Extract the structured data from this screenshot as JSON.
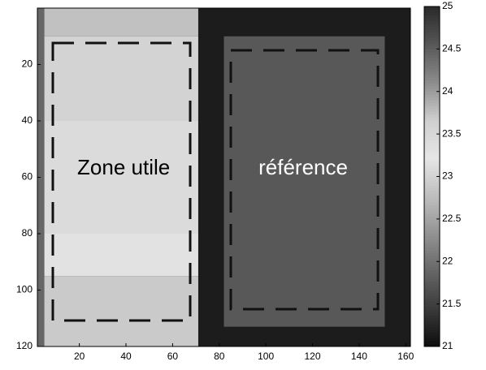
{
  "chart_data": {
    "type": "heatmap",
    "xlim": [
      2,
      162
    ],
    "ylim": [
      0,
      120
    ],
    "xticks": [
      20,
      40,
      60,
      80,
      100,
      120,
      140,
      160
    ],
    "yticks": [
      20,
      40,
      60,
      80,
      100,
      120
    ],
    "clim": [
      21,
      25
    ],
    "cticks": [
      21,
      21.5,
      22,
      22.5,
      23,
      23.5,
      24,
      24.5,
      25
    ],
    "colormap": [
      "#0d0d0d",
      "#3a3a3a",
      "#666666",
      "#939393",
      "#bfbfbf",
      "#e6e6e6",
      "#cfcfcf",
      "#8c8c8c",
      "#575757",
      "#2a2a2a"
    ],
    "regions": [
      {
        "x": [
          2,
          162
        ],
        "y": [
          0,
          120
        ],
        "value": 21.15
      },
      {
        "x": [
          2,
          71
        ],
        "y": [
          0,
          10
        ],
        "value": 22.8
      },
      {
        "x": [
          2,
          71
        ],
        "y": [
          10,
          40
        ],
        "value": 23.0
      },
      {
        "x": [
          2,
          71
        ],
        "y": [
          40,
          80
        ],
        "value": 23.1
      },
      {
        "x": [
          2,
          71
        ],
        "y": [
          80,
          95
        ],
        "value": 23.3
      },
      {
        "x": [
          2,
          71
        ],
        "y": [
          95,
          120
        ],
        "value": 22.9
      },
      {
        "x": [
          2,
          5
        ],
        "y": [
          0,
          120
        ],
        "value": 21.9
      },
      {
        "x": [
          82,
          151
        ],
        "y": [
          10,
          113
        ],
        "value": 21.75
      }
    ],
    "annotations": [
      {
        "text": "Zone utile",
        "x": 39,
        "y": 57,
        "color": "#000000"
      },
      {
        "text": "référence",
        "x": 116,
        "y": 57,
        "color": "#ffffff"
      }
    ]
  }
}
